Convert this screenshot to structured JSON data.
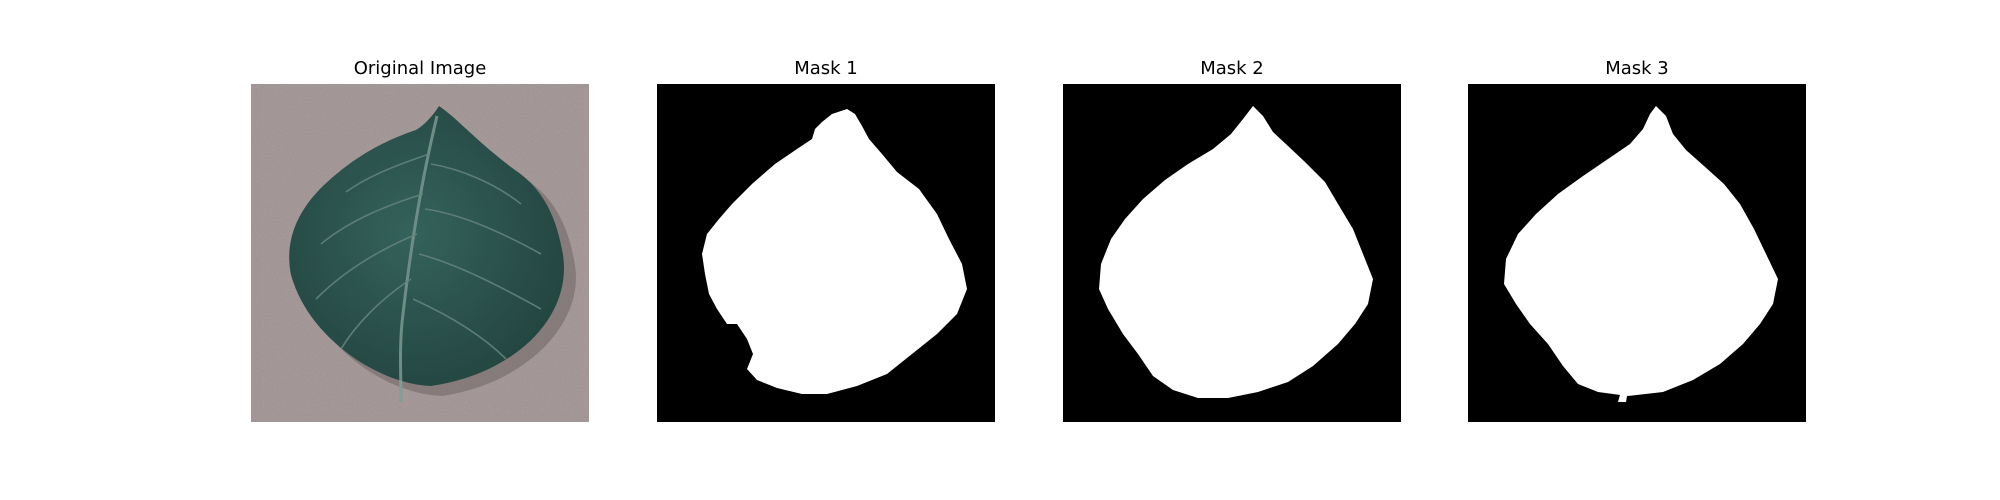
{
  "figure": {
    "panels": [
      {
        "title": "Original Image",
        "kind": "photo"
      },
      {
        "title": "Mask 1",
        "kind": "mask"
      },
      {
        "title": "Mask 2",
        "kind": "mask"
      },
      {
        "title": "Mask 3",
        "kind": "mask"
      }
    ],
    "colors": {
      "background": "#a99c9c",
      "leaf": "#2f5a54",
      "leaf_dark": "#1f3b37",
      "vein": "#6f9089",
      "mask_bg": "#000000",
      "mask_fg": "#ffffff"
    }
  }
}
